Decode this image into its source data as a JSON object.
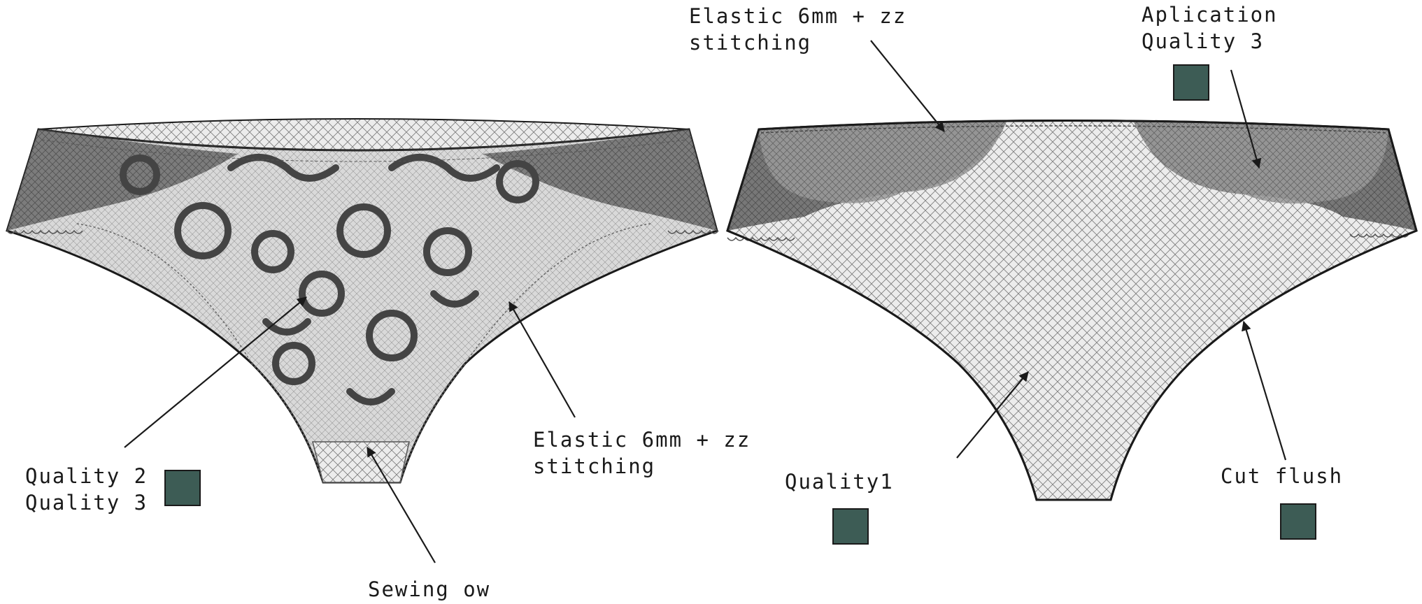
{
  "annotations": {
    "left_quality_line1": "Quality 2",
    "left_quality_line2": "Quality 3",
    "left_elastic_line1": "Elastic 6mm + zz",
    "left_elastic_line2": "stitching",
    "sewing": "Sewing ow",
    "right_elastic_line1": "Elastic 6mm + zz",
    "right_elastic_line2": "stitching",
    "aplication_line1": "Aplication",
    "aplication_line2": "Quality 3",
    "quality1": "Quality1",
    "cut_flush": "Cut flush"
  },
  "colors": {
    "swatch": "#3d5c55",
    "outline": "#1a1a1a",
    "mesh_fill": "#e9e9e9",
    "mesh_line": "#777777",
    "lace_dark": "#6a6a6a",
    "lace_motif": "#4a4a4a"
  },
  "swatches": [
    {
      "id": "quality-2-3-swatch"
    },
    {
      "id": "aplication-swatch"
    },
    {
      "id": "quality1-swatch"
    },
    {
      "id": "cut-flush-swatch"
    }
  ]
}
